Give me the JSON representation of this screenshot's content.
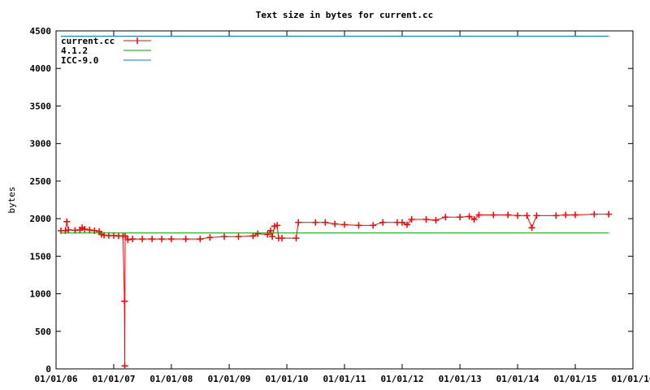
{
  "chart_data": {
    "type": "line",
    "title": "Text size in bytes for current.cc",
    "xlabel": "",
    "ylabel": "bytes",
    "x_axis_kind": "date",
    "xlim": [
      "2006-01-01",
      "2016-01-01"
    ],
    "ylim": [
      0,
      4500
    ],
    "x_tick_labels": [
      "01/01/06",
      "01/01/07",
      "01/01/08",
      "01/01/09",
      "01/01/10",
      "01/01/11",
      "01/01/12",
      "01/01/13",
      "01/01/14",
      "01/01/15",
      "01/01/16"
    ],
    "x_ticks": [
      "2006-01-01",
      "2007-01-01",
      "2008-01-01",
      "2009-01-01",
      "2010-01-01",
      "2011-01-01",
      "2012-01-01",
      "2013-01-01",
      "2014-01-01",
      "2015-01-01",
      "2016-01-01"
    ],
    "y_ticks": [
      0,
      500,
      1000,
      1500,
      2000,
      2500,
      3000,
      3500,
      4000,
      4500
    ],
    "y_tick_labels": [
      "0",
      "500",
      "1000",
      "1500",
      "2000",
      "2500",
      "3000",
      "3500",
      "4000",
      "4500"
    ],
    "grid": false,
    "legend_position": "top-left",
    "series": [
      {
        "name": "current.cc",
        "color": "#ff0000",
        "style": "line-with-cross-markers",
        "points": [
          [
            "2006-02-01",
            1840
          ],
          [
            "2006-03-01",
            1840
          ],
          [
            "2006-03-10",
            1960
          ],
          [
            "2006-03-20",
            1850
          ],
          [
            "2006-05-01",
            1845
          ],
          [
            "2006-06-01",
            1850
          ],
          [
            "2006-06-15",
            1880
          ],
          [
            "2006-07-01",
            1860
          ],
          [
            "2006-08-01",
            1850
          ],
          [
            "2006-09-01",
            1840
          ],
          [
            "2006-10-01",
            1830
          ],
          [
            "2006-10-15",
            1790
          ],
          [
            "2006-11-01",
            1780
          ],
          [
            "2006-12-01",
            1775
          ],
          [
            "2007-01-01",
            1775
          ],
          [
            "2007-02-01",
            1770
          ],
          [
            "2007-03-01",
            1770
          ],
          [
            "2007-03-10",
            900
          ],
          [
            "2007-03-12",
            40
          ],
          [
            "2007-03-14",
            1770
          ],
          [
            "2007-04-01",
            1720
          ],
          [
            "2007-05-01",
            1730
          ],
          [
            "2007-07-01",
            1730
          ],
          [
            "2007-09-01",
            1730
          ],
          [
            "2007-11-01",
            1730
          ],
          [
            "2008-01-01",
            1730
          ],
          [
            "2008-04-01",
            1730
          ],
          [
            "2008-07-01",
            1730
          ],
          [
            "2008-09-01",
            1750
          ],
          [
            "2008-12-01",
            1760
          ],
          [
            "2009-03-01",
            1760
          ],
          [
            "2009-06-01",
            1770
          ],
          [
            "2009-07-01",
            1800
          ],
          [
            "2009-09-01",
            1790
          ],
          [
            "2009-09-20",
            1840
          ],
          [
            "2009-10-01",
            1760
          ],
          [
            "2009-10-15",
            1900
          ],
          [
            "2009-11-01",
            1910
          ],
          [
            "2009-11-10",
            1740
          ],
          [
            "2009-12-01",
            1740
          ],
          [
            "2010-03-01",
            1740
          ],
          [
            "2010-03-15",
            1950
          ],
          [
            "2010-07-01",
            1950
          ],
          [
            "2010-09-01",
            1950
          ],
          [
            "2010-11-01",
            1930
          ],
          [
            "2011-01-01",
            1920
          ],
          [
            "2011-04-01",
            1910
          ],
          [
            "2011-07-01",
            1910
          ],
          [
            "2011-09-01",
            1950
          ],
          [
            "2011-12-01",
            1950
          ],
          [
            "2012-01-01",
            1950
          ],
          [
            "2012-02-01",
            1920
          ],
          [
            "2012-03-01",
            1990
          ],
          [
            "2012-06-01",
            1990
          ],
          [
            "2012-08-01",
            1980
          ],
          [
            "2012-10-01",
            2020
          ],
          [
            "2013-01-01",
            2020
          ],
          [
            "2013-03-01",
            2030
          ],
          [
            "2013-04-01",
            1990
          ],
          [
            "2013-05-01",
            2050
          ],
          [
            "2013-08-01",
            2050
          ],
          [
            "2013-11-01",
            2050
          ],
          [
            "2014-01-01",
            2040
          ],
          [
            "2014-03-01",
            2040
          ],
          [
            "2014-04-01",
            1880
          ],
          [
            "2014-05-01",
            2040
          ],
          [
            "2014-09-01",
            2040
          ],
          [
            "2014-11-01",
            2050
          ],
          [
            "2015-01-01",
            2050
          ],
          [
            "2015-05-01",
            2060
          ],
          [
            "2015-08-01",
            2060
          ]
        ]
      },
      {
        "name": "4.1.2",
        "color": "#00a000",
        "style": "line",
        "points": [
          [
            "2006-02-01",
            1810
          ],
          [
            "2015-08-01",
            1810
          ]
        ]
      },
      {
        "name": "ICC-9.0",
        "color": "#0080c0",
        "style": "line",
        "points": [
          [
            "2006-02-01",
            4430
          ],
          [
            "2015-08-01",
            4430
          ]
        ]
      }
    ]
  }
}
